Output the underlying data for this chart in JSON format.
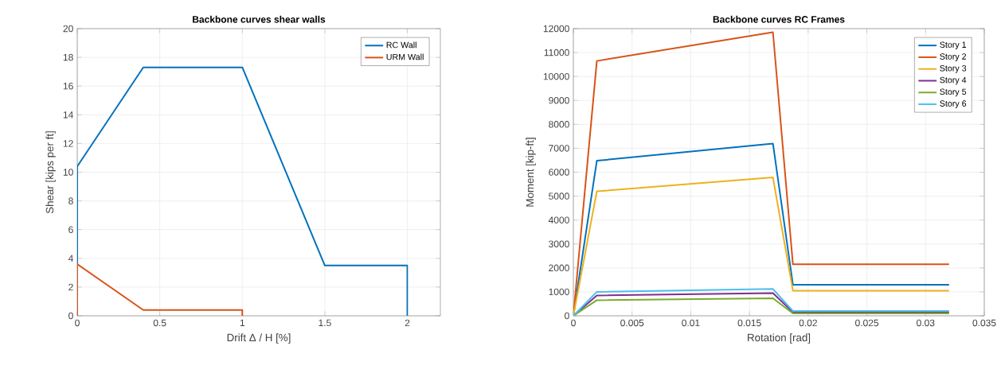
{
  "chart_data": [
    {
      "type": "line",
      "title": "Backbone curves shear walls",
      "xlabel": "Drift Δ / H [%]",
      "ylabel": "Shear [kips per ft]",
      "xlim": [
        0,
        2.2
      ],
      "ylim": [
        0,
        20
      ],
      "xticks": [
        0,
        0.5,
        1,
        1.5,
        2
      ],
      "yticks": [
        0,
        2,
        4,
        6,
        8,
        10,
        12,
        14,
        16,
        18,
        20
      ],
      "grid": true,
      "legend": "top right",
      "series": [
        {
          "name": "RC Wall",
          "color": "#0072bd",
          "x": [
            0,
            0,
            0.4,
            1,
            1.5,
            2,
            2
          ],
          "values": [
            0,
            10.4,
            17.3,
            17.3,
            3.5,
            3.5,
            0
          ]
        },
        {
          "name": "URM Wall",
          "color": "#d95319",
          "x": [
            0,
            0,
            0.4,
            1,
            1
          ],
          "values": [
            0,
            3.6,
            0.4,
            0.4,
            0
          ]
        }
      ]
    },
    {
      "type": "line",
      "title": "Backbone curves RC Frames",
      "xlabel": "Rotation [rad]",
      "ylabel": "Moment [kip-ft]",
      "xlim": [
        0,
        0.035
      ],
      "ylim": [
        0,
        12000
      ],
      "xticks": [
        0,
        0.005,
        0.01,
        0.015,
        0.02,
        0.025,
        0.03,
        0.035
      ],
      "yticks": [
        0,
        1000,
        2000,
        3000,
        4000,
        5000,
        6000,
        7000,
        8000,
        9000,
        10000,
        11000,
        12000
      ],
      "grid": true,
      "legend": "top right",
      "series": [
        {
          "name": "Story 1",
          "color": "#0072bd",
          "x": [
            0,
            0.002,
            0.017,
            0.0187,
            0.032
          ],
          "values": [
            0,
            6480,
            7200,
            1300,
            1300
          ]
        },
        {
          "name": "Story 2",
          "color": "#d95319",
          "x": [
            0,
            0.002,
            0.017,
            0.0187,
            0.032
          ],
          "values": [
            0,
            10650,
            11850,
            2150,
            2150
          ]
        },
        {
          "name": "Story 3",
          "color": "#edb120",
          "x": [
            0,
            0.002,
            0.017,
            0.0187,
            0.032
          ],
          "values": [
            0,
            5200,
            5780,
            1050,
            1050
          ]
        },
        {
          "name": "Story 4",
          "color": "#7e2f8e",
          "x": [
            0,
            0.002,
            0.017,
            0.0187,
            0.032
          ],
          "values": [
            0,
            850,
            950,
            150,
            150
          ]
        },
        {
          "name": "Story 5",
          "color": "#77ac30",
          "x": [
            0,
            0.002,
            0.017,
            0.0187,
            0.032
          ],
          "values": [
            0,
            650,
            730,
            100,
            100
          ]
        },
        {
          "name": "Story 6",
          "color": "#4dbeee",
          "x": [
            0,
            0.002,
            0.017,
            0.0187,
            0.032
          ],
          "values": [
            0,
            1000,
            1120,
            200,
            200
          ]
        }
      ]
    }
  ]
}
